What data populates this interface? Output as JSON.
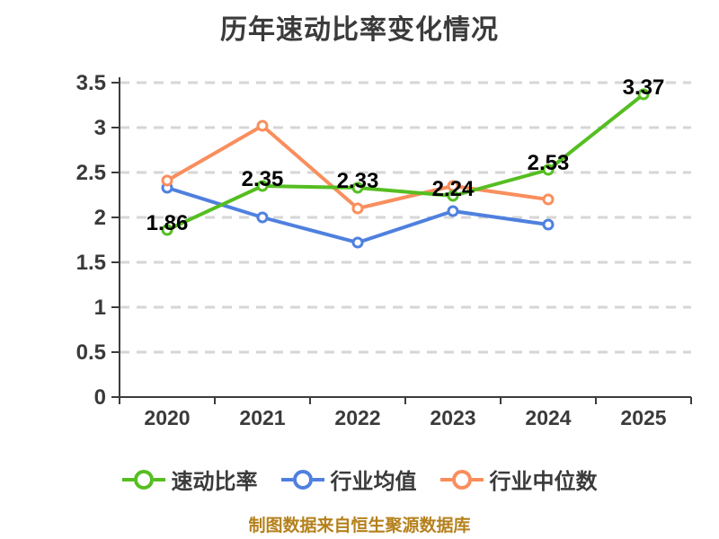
{
  "title": "历年速动比率变化情况",
  "footer_note": "制图数据来自恒生聚源数据库",
  "colors": {
    "quick_ratio": "#55be21",
    "industry_avg": "#4f80df",
    "industry_median": "#f98e5d",
    "grid": "#d6d6d6",
    "axis": "#3c3c3c",
    "tick_text": "#3a3a3a",
    "data_label": "#000000",
    "title_text": "#3b3b3b",
    "footer_text": "#b5811c",
    "marker_fill": "#ffffff"
  },
  "chart_data": {
    "type": "line",
    "title": "历年速动比率变化情况",
    "x_categories": [
      "2020",
      "2021",
      "2022",
      "2023",
      "2024",
      "2025"
    ],
    "series": [
      {
        "name": "速动比率",
        "color_key": "quick_ratio",
        "values": [
          1.86,
          2.35,
          2.33,
          2.24,
          2.53,
          3.37
        ],
        "show_labels": true,
        "labels": [
          "1.86",
          "2.35",
          "2.33",
          "2.24",
          "2.53",
          "3.37"
        ]
      },
      {
        "name": "行业均值",
        "color_key": "industry_avg",
        "values": [
          2.33,
          2.0,
          1.72,
          2.07,
          1.92,
          null
        ],
        "show_labels": false,
        "labels": []
      },
      {
        "name": "行业中位数",
        "color_key": "industry_median",
        "values": [
          2.41,
          3.02,
          2.1,
          2.35,
          2.2,
          null
        ],
        "show_labels": false,
        "labels": []
      }
    ],
    "ylim": [
      0,
      3.5
    ],
    "yticks": [
      {
        "v": 0,
        "label": "0"
      },
      {
        "v": 0.5,
        "label": "0.5"
      },
      {
        "v": 1,
        "label": "1"
      },
      {
        "v": 1.5,
        "label": "1.5"
      },
      {
        "v": 2,
        "label": "2"
      },
      {
        "v": 2.5,
        "label": "2.5"
      },
      {
        "v": 3,
        "label": "3"
      },
      {
        "v": 3.5,
        "label": "3.5"
      }
    ],
    "grid": "dashed-horizontal",
    "legend_position": "bottom"
  }
}
